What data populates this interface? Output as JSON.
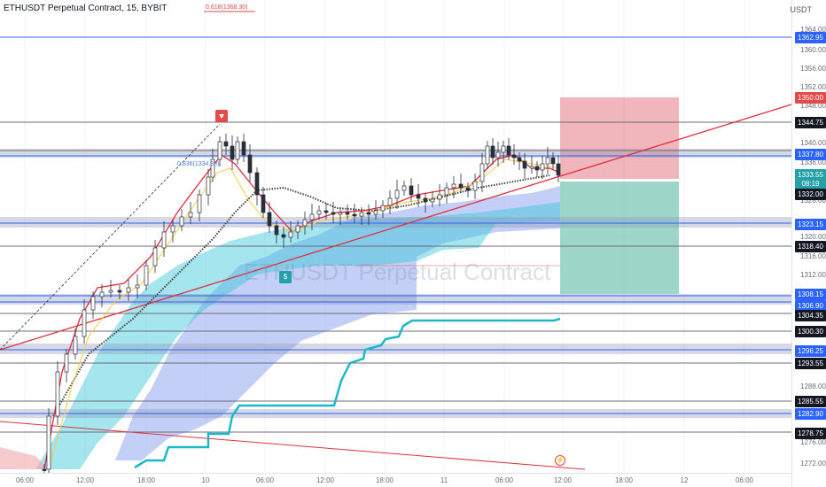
{
  "header": {
    "symbol_title": "ETHUSDT Perpetual Contract, 15, BYBIT",
    "currency": "USDT",
    "watermark": "ETHUSDT Perpetual Contract"
  },
  "fib": {
    "upper_label": "0.618(1368.30)",
    "lower_label": "0.836(1334.80)"
  },
  "price_axis": {
    "ticks": [
      "1364.00",
      "1360.00",
      "1356.00",
      "1352.00",
      "1348.00",
      "1340.00",
      "1336.00",
      "1328.00",
      "1320.00",
      "1316.00",
      "1312.00",
      "1288.00",
      "1276.00",
      "1272.00"
    ],
    "tags": [
      {
        "value": "1362.95",
        "color": "#2962ff"
      },
      {
        "value": "1350.00",
        "color": "#e34a4a"
      },
      {
        "value": "1344.75",
        "color": "#131722"
      },
      {
        "value": "1337.80",
        "color": "#2962ff"
      },
      {
        "value": "1333.55",
        "color": "#23a0a8"
      },
      {
        "value": "08:19",
        "color": "#23a0a8"
      },
      {
        "value": "1332.00",
        "color": "#131722"
      },
      {
        "value": "1323.15",
        "color": "#2962ff"
      },
      {
        "value": "1318.40",
        "color": "#131722"
      },
      {
        "value": "1308.15",
        "color": "#2962ff"
      },
      {
        "value": "1306.90",
        "color": "#2962ff"
      },
      {
        "value": "1304.35",
        "color": "#131722"
      },
      {
        "value": "1300.30",
        "color": "#131722"
      },
      {
        "value": "1296.25",
        "color": "#2962ff"
      },
      {
        "value": "1293.55",
        "color": "#131722"
      },
      {
        "value": "1285.55",
        "color": "#131722"
      },
      {
        "value": "1282.90",
        "color": "#2962ff"
      },
      {
        "value": "1278.75",
        "color": "#131722"
      }
    ]
  },
  "time_axis": [
    "06:00",
    "12:00",
    "18:00",
    "10",
    "06:00",
    "12:00",
    "18:00",
    "11",
    "06:00",
    "12:00",
    "18:00",
    "12",
    "06:00"
  ],
  "markers": {
    "buy_label": "$"
  },
  "icons": {
    "flash": "lightning-icon"
  },
  "colors": {
    "up": "#26a69a",
    "down": "#ef5350",
    "candle": "#2a2e39",
    "trend": "#e03040",
    "support": "#2962ff",
    "cloud_blue": "#5b7de8",
    "cloud_cyan": "#2ec4d6",
    "baseline": "#1cb8c8"
  }
}
